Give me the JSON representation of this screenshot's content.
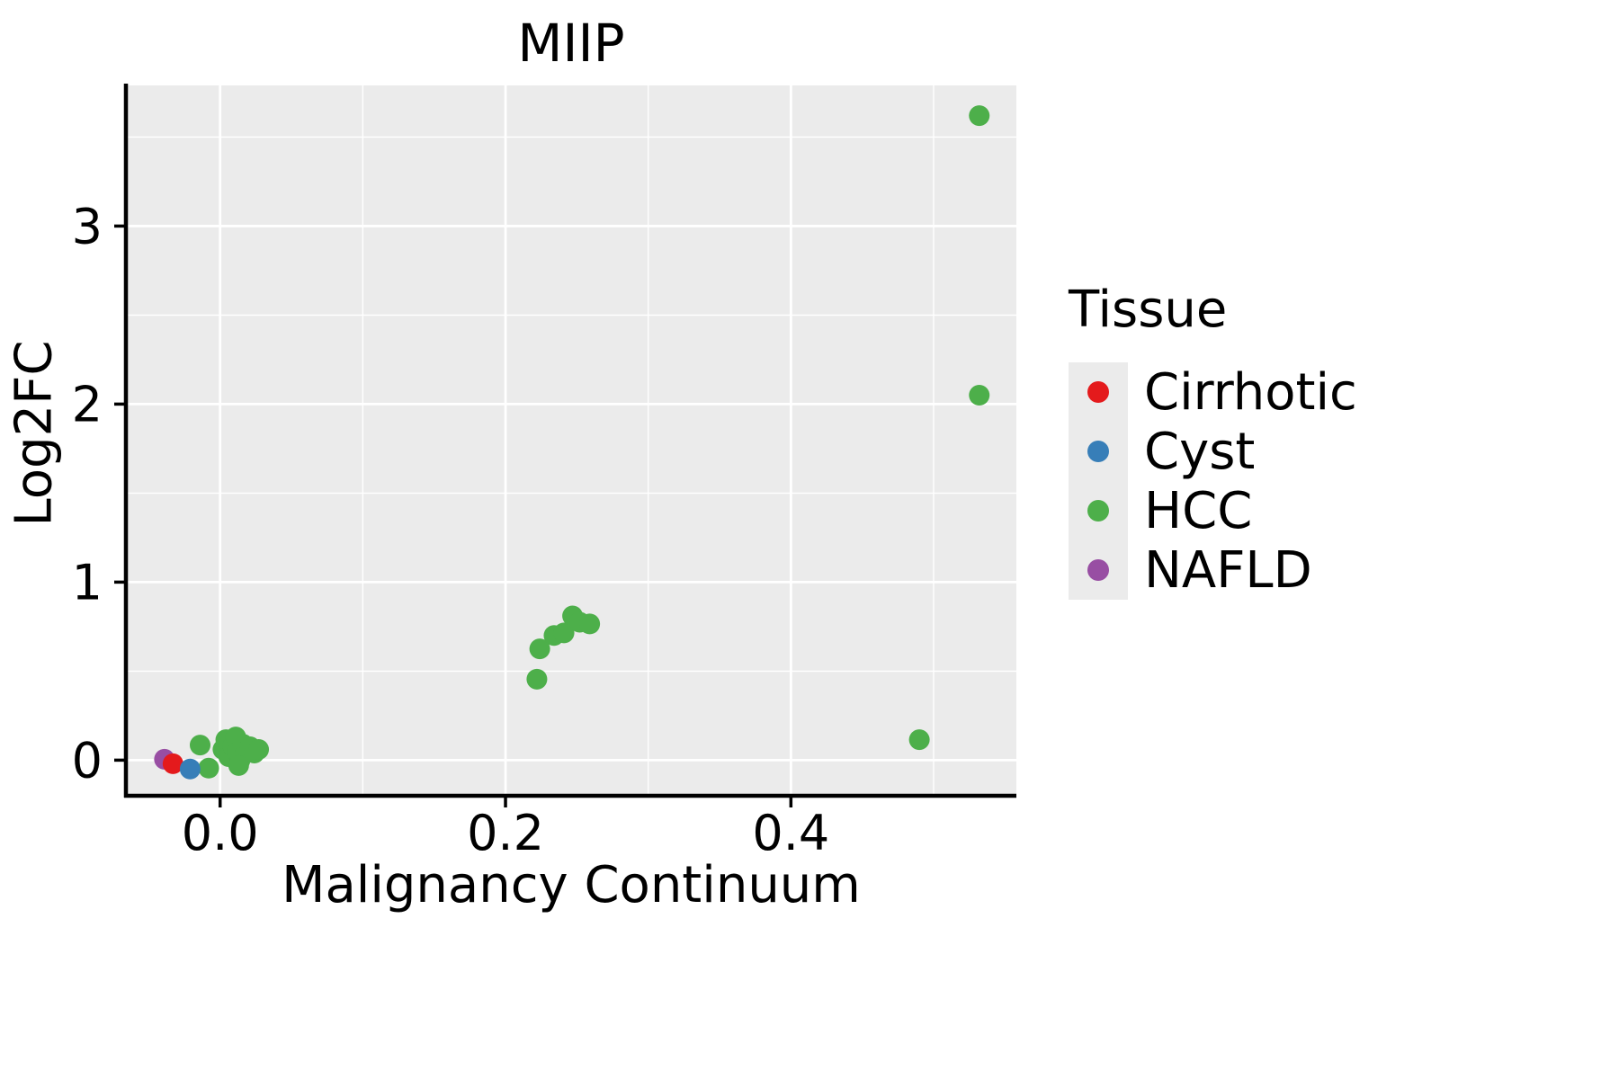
{
  "chart_data": {
    "type": "scatter",
    "title": "MIIP",
    "xlabel": "Malignancy Continuum",
    "ylabel": "Log2FC",
    "xlim": [
      -0.066,
      0.558
    ],
    "ylim": [
      -0.2,
      3.79
    ],
    "x_ticks": [
      0.0,
      0.2,
      0.4
    ],
    "x_tick_labels": [
      "0.0",
      "0.2",
      "0.4"
    ],
    "y_ticks": [
      0,
      1,
      2,
      3
    ],
    "y_tick_labels": [
      "0",
      "1",
      "2",
      "3"
    ],
    "x_minor_gridlines": [
      0.1,
      0.3,
      0.5
    ],
    "y_minor_gridlines": [
      0.5,
      1.5,
      2.5,
      3.5
    ],
    "panel_bg": "#ebebeb",
    "grid_color": "#ffffff",
    "axis_color": "#000000",
    "grid": true,
    "legend": {
      "title": "Tissue",
      "position": "right"
    },
    "series": [
      {
        "name": "Cirrhotic",
        "color": "#e41a1c",
        "points": [
          [
            -0.033,
            -0.02
          ]
        ]
      },
      {
        "name": "Cyst",
        "color": "#377eb8",
        "points": [
          [
            -0.021,
            -0.05
          ]
        ]
      },
      {
        "name": "HCC",
        "color": "#4daf4a",
        "points": [
          [
            -0.014,
            0.085
          ],
          [
            -0.008,
            -0.045
          ],
          [
            0.002,
            0.06
          ],
          [
            0.004,
            0.115
          ],
          [
            0.006,
            0.02
          ],
          [
            0.009,
            0.08
          ],
          [
            0.011,
            0.13
          ],
          [
            0.012,
            0.045
          ],
          [
            0.014,
            0.0
          ],
          [
            0.016,
            0.09
          ],
          [
            0.018,
            0.05
          ],
          [
            0.021,
            0.075
          ],
          [
            0.024,
            0.04
          ],
          [
            0.027,
            0.06
          ],
          [
            0.013,
            -0.03
          ],
          [
            0.222,
            0.455
          ],
          [
            0.224,
            0.625
          ],
          [
            0.234,
            0.7
          ],
          [
            0.241,
            0.715
          ],
          [
            0.247,
            0.81
          ],
          [
            0.252,
            0.775
          ],
          [
            0.259,
            0.765
          ],
          [
            0.49,
            0.115
          ],
          [
            0.532,
            2.05
          ],
          [
            0.532,
            3.62
          ]
        ]
      },
      {
        "name": "NAFLD",
        "color": "#984ea3",
        "points": [
          [
            -0.039,
            0.005
          ]
        ]
      }
    ]
  }
}
